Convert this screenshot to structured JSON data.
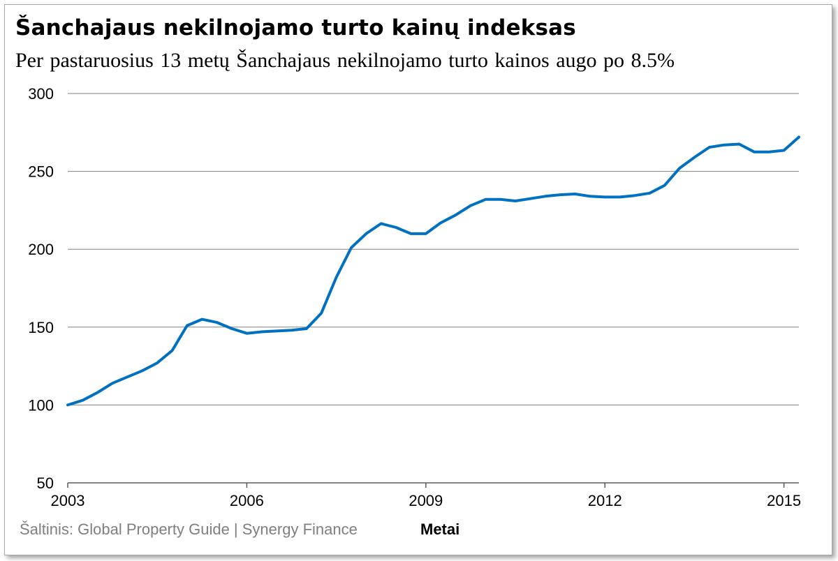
{
  "header": {
    "title": "Šanchajaus nekilnojamo turto kainų indeksas",
    "subtitle": "Per pastaruosius  13 metų Šanchajaus nekilnojamo turto kainos augo po 8.5%"
  },
  "footer": {
    "source": "Šaltinis: Global Property Guide | Synergy Finance",
    "x_axis_title": "Metai"
  },
  "colors": {
    "line": "#0070c0",
    "grid": "#808080",
    "axis": "#595959"
  },
  "chart_data": {
    "type": "line",
    "title": "Šanchajaus nekilnojamo turto kainų indeksas",
    "subtitle": "Per pastaruosius  13 metų Šanchajaus nekilnojamo turto kainos augo po 8.5%",
    "xlabel": "Metai",
    "ylabel": "",
    "xlim": [
      2003,
      2015.25
    ],
    "ylim": [
      50,
      300
    ],
    "yticks": [
      50,
      100,
      150,
      200,
      250,
      300
    ],
    "xticks": [
      2003,
      2006,
      2009,
      2012,
      2015
    ],
    "grid": true,
    "legend": "none",
    "series": [
      {
        "x": [
          2003.0,
          2003.25,
          2003.5,
          2003.75,
          2004.0,
          2004.25,
          2004.5,
          2004.75,
          2005.0,
          2005.25,
          2005.5,
          2005.75,
          2006.0,
          2006.25,
          2006.5,
          2006.75,
          2007.0,
          2007.25,
          2007.5,
          2007.75,
          2008.0,
          2008.25,
          2008.5,
          2008.75,
          2009.0,
          2009.25,
          2009.5,
          2009.75,
          2010.0,
          2010.25,
          2010.5,
          2010.75,
          2011.0,
          2011.25,
          2011.5,
          2011.75,
          2012.0,
          2012.25,
          2012.5,
          2012.75,
          2013.0,
          2013.25,
          2013.5,
          2013.75,
          2014.0,
          2014.25,
          2014.5,
          2014.75,
          2015.0,
          2015.25
        ],
        "values": [
          100,
          103,
          108,
          114,
          118,
          122,
          127,
          135,
          151,
          155,
          153,
          149,
          146,
          147,
          147.5,
          148,
          149,
          159,
          182,
          201,
          210,
          216.5,
          214,
          210,
          210,
          217,
          222,
          228,
          232,
          232,
          231,
          232.5,
          234,
          235,
          235.5,
          234,
          233.5,
          233.5,
          234.5,
          236,
          241,
          252,
          259,
          265.5,
          267,
          267.5,
          262.5,
          262.5,
          263.5,
          272
        ]
      }
    ]
  }
}
